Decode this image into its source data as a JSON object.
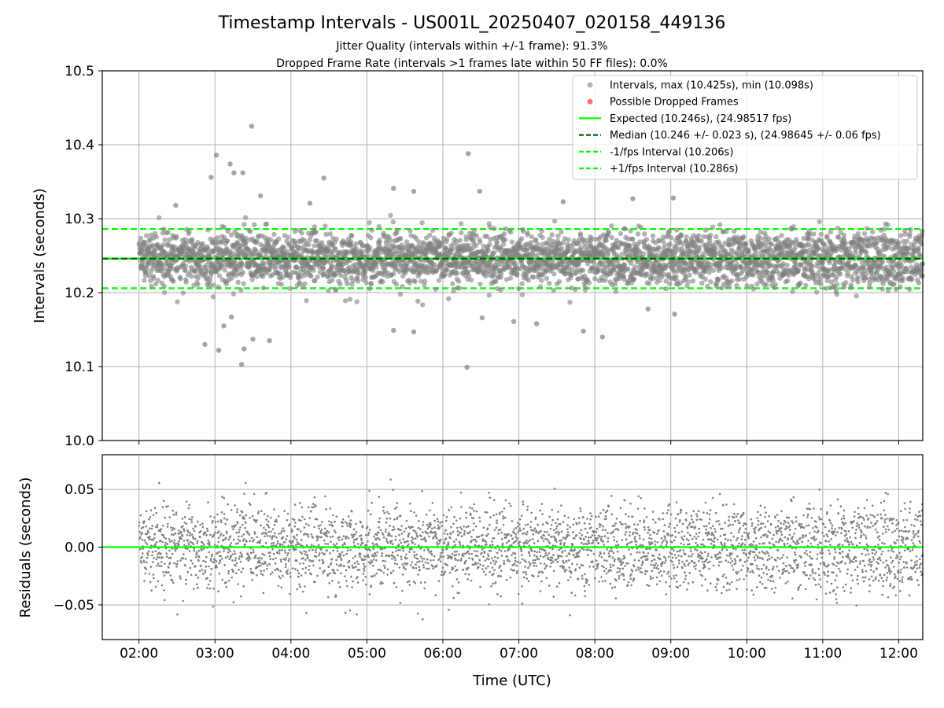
{
  "figure": {
    "title": "Timestamp Intervals - US001L_20250407_020158_449136",
    "subtitle_1": "Jitter Quality (intervals within +/-1 frame): 91.3%",
    "subtitle_2": "Dropped Frame Rate (intervals >1 frames late within 50 FF files): 0.0%"
  },
  "colors": {
    "points": "#808080",
    "dropped": "#ff0000",
    "expected": "#00ff00",
    "median": "#006400",
    "fps_band": "#00ff00",
    "grid": "#b0b0b0"
  },
  "chart_data": [
    {
      "type": "scatter",
      "name": "intervals",
      "ylabel": "Intervals (seconds)",
      "ylim": [
        10.0,
        10.5
      ],
      "yticks": [
        "10.0",
        "10.1",
        "10.2",
        "10.3",
        "10.4",
        "10.5"
      ],
      "grid": true,
      "legend_position": "top-right",
      "legend": [
        "Intervals, max (10.425s), min (10.098s)",
        "Possible Dropped Frames",
        "Expected (10.246s), (24.98517 fps)",
        "Median (10.246 +/- 0.023 s), (24.98645 +/- 0.06 fps)",
        "-1/fps Interval (10.206s)",
        "+1/fps Interval (10.286s)"
      ],
      "lines": {
        "expected": 10.246,
        "median": 10.246,
        "minus_fps": 10.206,
        "plus_fps": 10.286
      },
      "summary": {
        "max": 10.425,
        "min": 10.098,
        "median": 10.246,
        "std": 0.023,
        "n_points": 3600
      },
      "outliers": [
        {
          "x": "03:01",
          "y": 10.386
        },
        {
          "x": "03:12",
          "y": 10.374
        },
        {
          "x": "03:15",
          "y": 10.362
        },
        {
          "x": "03:29",
          "y": 10.425
        },
        {
          "x": "03:22",
          "y": 10.362
        },
        {
          "x": "02:57",
          "y": 10.356
        },
        {
          "x": "04:26",
          "y": 10.355
        },
        {
          "x": "06:20",
          "y": 10.388
        },
        {
          "x": "05:21",
          "y": 10.341
        },
        {
          "x": "06:29",
          "y": 10.337
        },
        {
          "x": "05:37",
          "y": 10.337
        },
        {
          "x": "08:30",
          "y": 10.327
        },
        {
          "x": "09:02",
          "y": 10.328
        },
        {
          "x": "03:36",
          "y": 10.331
        },
        {
          "x": "02:29",
          "y": 10.318
        },
        {
          "x": "07:35",
          "y": 10.323
        },
        {
          "x": "04:15",
          "y": 10.321
        },
        {
          "x": "03:21",
          "y": 10.103
        },
        {
          "x": "03:03",
          "y": 10.122
        },
        {
          "x": "02:52",
          "y": 10.13
        },
        {
          "x": "06:19",
          "y": 10.099
        },
        {
          "x": "03:23",
          "y": 10.124
        },
        {
          "x": "03:30",
          "y": 10.137
        },
        {
          "x": "03:43",
          "y": 10.135
        },
        {
          "x": "05:21",
          "y": 10.149
        },
        {
          "x": "05:37",
          "y": 10.147
        },
        {
          "x": "07:51",
          "y": 10.148
        },
        {
          "x": "08:06",
          "y": 10.14
        },
        {
          "x": "06:56",
          "y": 10.161
        },
        {
          "x": "07:14",
          "y": 10.158
        },
        {
          "x": "03:07",
          "y": 10.155
        },
        {
          "x": "03:13",
          "y": 10.167
        },
        {
          "x": "06:31",
          "y": 10.166
        },
        {
          "x": "08:42",
          "y": 10.178
        },
        {
          "x": "09:03",
          "y": 10.171
        }
      ]
    },
    {
      "type": "scatter",
      "name": "residuals",
      "xlabel": "Time (UTC)",
      "ylabel": "Residuals (seconds)",
      "xlim": [
        "01:31",
        "12:19"
      ],
      "xticks": [
        "02:00",
        "03:00",
        "04:00",
        "05:00",
        "06:00",
        "07:00",
        "08:00",
        "09:00",
        "10:00",
        "11:00",
        "12:00"
      ],
      "ylim": [
        -0.08,
        0.08
      ],
      "yticks": [
        "0.05",
        "0.00",
        "−0.05"
      ],
      "grid": true,
      "zero_line": 0.0,
      "summary": {
        "std": 0.023,
        "n_points": 3600
      }
    }
  ]
}
